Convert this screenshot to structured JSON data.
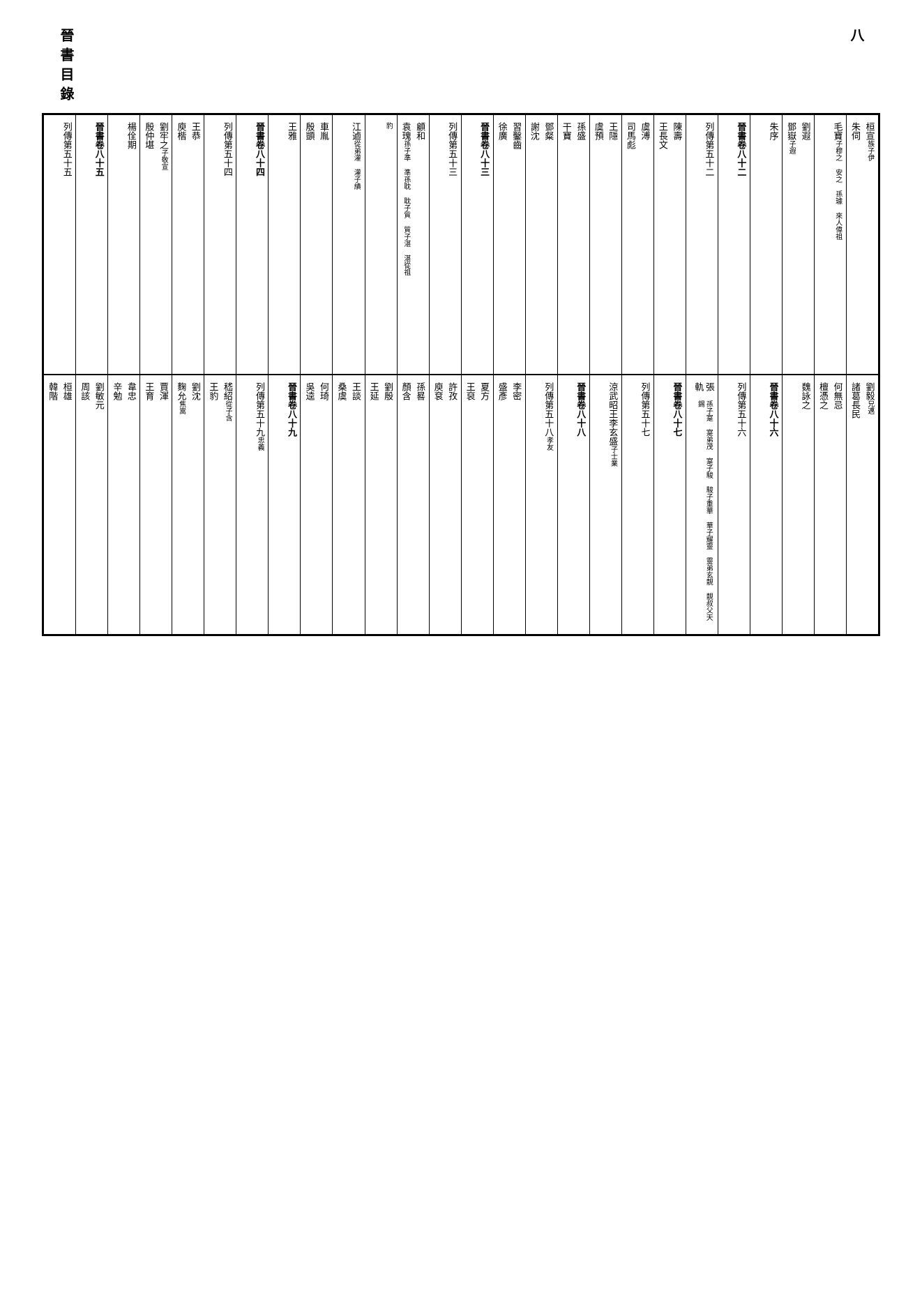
{
  "header": {
    "title": "晉書目錄",
    "page_num": "八"
  },
  "columns": [
    {
      "top_a": "桓宣",
      "top_a_sub": "族子伊",
      "top_b": "朱伺",
      "bot_a": "劉毅",
      "bot_a_sub": "兄邁",
      "bot_b": "諸葛長民"
    },
    {
      "top_a": "毛寶",
      "top_a_sub": "子穆之 安之 孫璩 來人偉祖",
      "bot_a": "何無忌",
      "bot_b": "檀憑之"
    },
    {
      "top_a": "劉遐",
      "top_b": "鄧嶽",
      "top_b_sub": "子遐",
      "bot_a": "魏詠之"
    },
    {
      "top_a": "朱序",
      "bot_a": "晉書卷八十六",
      "bot_a_bold": true
    },
    {
      "top_a": "晉書卷八十二",
      "top_a_bold": true,
      "bot_a": "列傳第五十六"
    },
    {
      "top_a": "列傳第五十二",
      "bot_a": "張軌",
      "bot_a_sub": "孫子寔 寔弟茂 寔子駿 駿子重華 華子耀靈 靈弟玄靚 靚叔父天錫"
    },
    {
      "top_a": "陳壽",
      "top_b": "王長文",
      "bot_a": "晉書卷八十七",
      "bot_a_bold": true
    },
    {
      "top_a": "虞溥",
      "top_b": "司馬彪",
      "bot_a": "列傳第五十七"
    },
    {
      "top_a": "王隱",
      "top_b": "虞預",
      "bot_a": "涼武昭王李玄盛",
      "bot_a_sub": "子士業"
    },
    {
      "top_a": "孫盛",
      "top_b": "干寶",
      "bot_a": "晉書卷八十八",
      "bot_a_bold": true
    },
    {
      "top_a": "鄧粲",
      "top_b": "謝沈",
      "bot_a": "列傳第五十八",
      "bot_a_sub": "孝友"
    },
    {
      "top_a": "習鑿齒",
      "top_b": "徐廣",
      "bot_a": "李密",
      "bot_b": "盛彥"
    },
    {
      "top_a": "晉書卷八十三",
      "top_a_bold": true,
      "bot_a": "夏方",
      "bot_b": "王裒"
    },
    {
      "top_a": "列傳第五十三",
      "bot_a": "許孜",
      "bot_b": "庾袞"
    },
    {
      "top_a": "顧和",
      "top_b": "袁瑰",
      "top_b_sub": "孫子準 準孫耽 耽子質 質子湛 湛從祖",
      "bot_a": "孫晷",
      "bot_b": "顏含"
    },
    {
      "top_a": "",
      "top_a_sub": "豹",
      "bot_a": "劉殷",
      "bot_b": "王延"
    },
    {
      "top_a": "江逌",
      "top_a_sub": "從弟灌 灌子績",
      "bot_a": "王談",
      "bot_b": "桑虞"
    },
    {
      "top_a": "車胤",
      "top_b": "殷顗",
      "bot_a": "何琦",
      "bot_b": "吳逵"
    },
    {
      "top_a": "王雅",
      "bot_a": "晉書卷八十九",
      "bot_a_bold": true
    },
    {
      "top_a": "晉書卷八十四",
      "top_a_bold": true,
      "bot_a": "列傳第五十九",
      "bot_a_sub": "忠義"
    },
    {
      "top_a": "列傳第五十四",
      "bot_a": "嵇紹",
      "bot_a_sub": "從子含",
      "bot_b": "王豹"
    },
    {
      "top_a": "王恭",
      "top_b": "庾楷",
      "bot_a": "劉沈",
      "bot_b": "麴允",
      "bot_b_sub": "焦嵩"
    },
    {
      "top_a": "劉牢之",
      "top_a_sub": "子敬宣",
      "top_b": "殷仲堪",
      "bot_a": "賈渾",
      "bot_b": "王育"
    },
    {
      "top_a": "楊佺期",
      "bot_a": "韋忠",
      "bot_b": "辛勉"
    },
    {
      "top_a": "晉書卷八十五",
      "top_a_bold": true,
      "bot_a": "劉敏元",
      "bot_b": "周該"
    },
    {
      "top_a": "列傳第五十五",
      "bot_a": "桓雄",
      "bot_b": "韓階"
    }
  ]
}
